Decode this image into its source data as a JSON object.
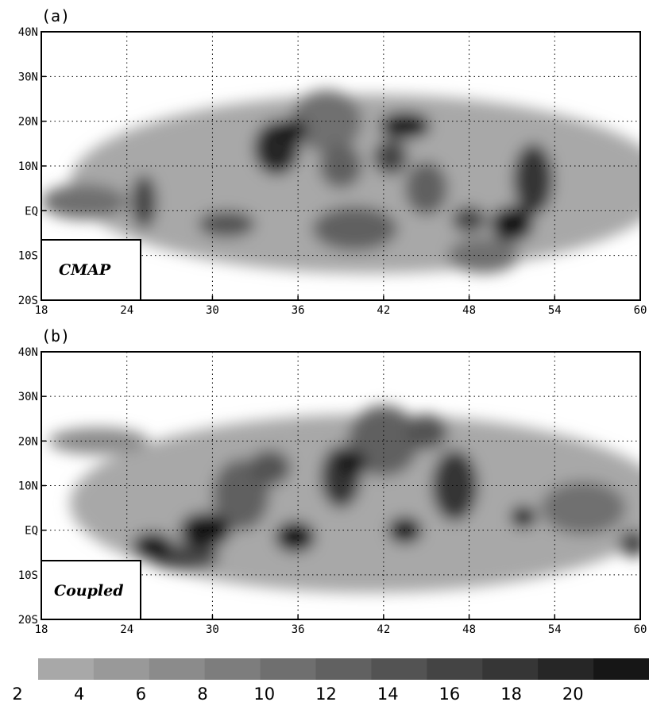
{
  "chart_data": [
    {
      "type": "heatmap",
      "panel_label": "(a)",
      "inset_label": "CMAP",
      "x_ticks": [
        "18",
        "24",
        "30",
        "36",
        "42",
        "48",
        "54",
        "60"
      ],
      "x_tick_values": [
        18,
        24,
        30,
        36,
        42,
        48,
        54,
        60
      ],
      "y_ticks": [
        "20S",
        "10S",
        "EQ",
        "10N",
        "20N",
        "30N",
        "40N"
      ],
      "y_tick_values": [
        -20,
        -10,
        0,
        10,
        20,
        30,
        40
      ],
      "xlim": [
        18,
        60
      ],
      "ylim": [
        -20,
        40
      ],
      "grid": true,
      "blobs": [
        {
          "x": 34.5,
          "y": 14,
          "rx": 1.6,
          "ry": 6,
          "level": 18
        },
        {
          "x": 35.5,
          "y": 18,
          "rx": 1.2,
          "ry": 2.5,
          "level": 20
        },
        {
          "x": 43.5,
          "y": 19,
          "rx": 1.8,
          "ry": 3,
          "level": 20
        },
        {
          "x": 42.5,
          "y": 12,
          "rx": 1.2,
          "ry": 4,
          "level": 14
        },
        {
          "x": 51,
          "y": -3,
          "rx": 1.5,
          "ry": 4,
          "level": 20
        },
        {
          "x": 52.5,
          "y": 7,
          "rx": 1.4,
          "ry": 8,
          "level": 16
        },
        {
          "x": 48,
          "y": -2,
          "rx": 1.2,
          "ry": 3,
          "level": 14
        },
        {
          "x": 25.2,
          "y": 2,
          "rx": 0.9,
          "ry": 6,
          "level": 14
        },
        {
          "x": 31,
          "y": -3,
          "rx": 2,
          "ry": 3,
          "level": 12
        },
        {
          "x": 39,
          "y": 10,
          "rx": 1.5,
          "ry": 5,
          "level": 10
        },
        {
          "x": 38,
          "y": 20,
          "rx": 2.5,
          "ry": 7,
          "level": 8
        },
        {
          "x": 45,
          "y": 5,
          "rx": 1.5,
          "ry": 6,
          "level": 10
        },
        {
          "x": 21,
          "y": 2,
          "rx": 3,
          "ry": 4,
          "level": 8
        },
        {
          "x": 40,
          "y": -4,
          "rx": 3,
          "ry": 5,
          "level": 10
        },
        {
          "x": 49,
          "y": -10,
          "rx": 2.5,
          "ry": 4,
          "level": 8
        }
      ]
    },
    {
      "type": "heatmap",
      "panel_label": "(b)",
      "inset_label": "Coupled",
      "x_ticks": [
        "18",
        "24",
        "30",
        "36",
        "42",
        "48",
        "54",
        "60"
      ],
      "x_tick_values": [
        18,
        24,
        30,
        36,
        42,
        48,
        54,
        60
      ],
      "y_ticks": [
        "20S",
        "10S",
        "EQ",
        "10N",
        "20N",
        "30N",
        "40N"
      ],
      "y_tick_values": [
        -20,
        -10,
        0,
        10,
        20,
        30,
        40
      ],
      "xlim": [
        18,
        60
      ],
      "ylim": [
        -20,
        40
      ],
      "grid": true,
      "blobs": [
        {
          "x": 25.8,
          "y": -3.5,
          "rx": 1.4,
          "ry": 3,
          "level": 20
        },
        {
          "x": 29.5,
          "y": 0,
          "rx": 1.8,
          "ry": 4,
          "level": 20
        },
        {
          "x": 35.8,
          "y": -1.5,
          "rx": 1.4,
          "ry": 3.5,
          "level": 20
        },
        {
          "x": 39,
          "y": 12,
          "rx": 1.4,
          "ry": 7,
          "level": 16
        },
        {
          "x": 39.8,
          "y": 15,
          "rx": 1,
          "ry": 3,
          "level": 20
        },
        {
          "x": 43.5,
          "y": 0,
          "rx": 1.2,
          "ry": 3,
          "level": 20
        },
        {
          "x": 47,
          "y": 10,
          "rx": 1.6,
          "ry": 8,
          "level": 16
        },
        {
          "x": 51.8,
          "y": 3,
          "rx": 0.9,
          "ry": 2.5,
          "level": 20
        },
        {
          "x": 32,
          "y": 8,
          "rx": 2,
          "ry": 8,
          "level": 10
        },
        {
          "x": 34,
          "y": 14,
          "rx": 1.5,
          "ry": 4,
          "level": 12
        },
        {
          "x": 42,
          "y": 20,
          "rx": 2.5,
          "ry": 8,
          "level": 10
        },
        {
          "x": 45,
          "y": 22,
          "rx": 1.5,
          "ry": 4,
          "level": 12
        },
        {
          "x": 56,
          "y": 5,
          "rx": 3,
          "ry": 6,
          "level": 8
        },
        {
          "x": 59.5,
          "y": -3,
          "rx": 1,
          "ry": 3,
          "level": 14
        },
        {
          "x": 22,
          "y": 20,
          "rx": 3.5,
          "ry": 3,
          "level": 4
        },
        {
          "x": 28,
          "y": -6,
          "rx": 2.5,
          "ry": 3,
          "level": 14
        }
      ]
    }
  ],
  "colorbar": {
    "labels": [
      "2",
      "4",
      "6",
      "8",
      "10",
      "12",
      "14",
      "16",
      "18",
      "20"
    ],
    "levels": [
      2,
      4,
      6,
      8,
      10,
      12,
      14,
      16,
      18,
      20
    ],
    "colors": [
      "#a8a8a8",
      "#999999",
      "#8b8b8b",
      "#7d7d7d",
      "#6f6f6f",
      "#616161",
      "#535353",
      "#444444",
      "#363636",
      "#262626",
      "#161616"
    ]
  }
}
